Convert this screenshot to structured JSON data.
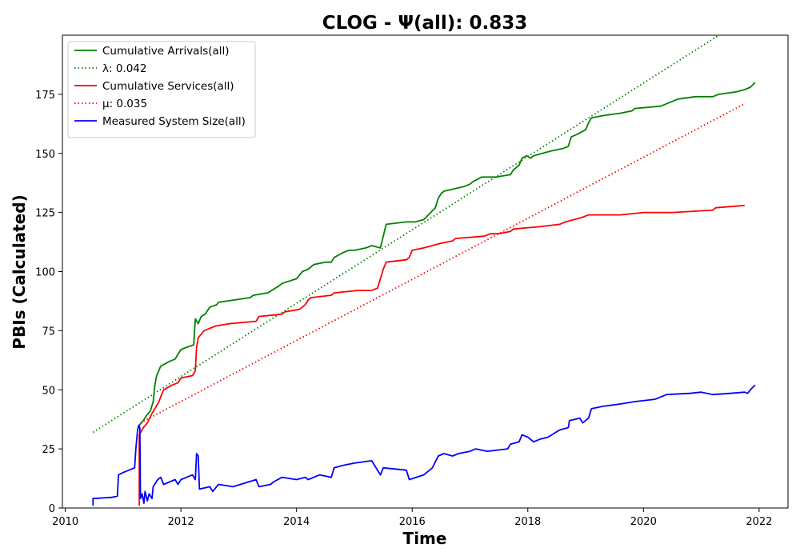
{
  "chart_data": {
    "type": "line",
    "title": "CLOG -  Ψ(all): 0.833",
    "xlabel": "Time",
    "ylabel": "PBIs (Calculated)",
    "xlim": [
      2009.95,
      2022.5
    ],
    "ylim": [
      0,
      200
    ],
    "xticks": [
      2010,
      2012,
      2014,
      2016,
      2018,
      2020,
      2022
    ],
    "yticks": [
      0,
      25,
      50,
      75,
      100,
      125,
      150,
      175
    ],
    "grid": false,
    "legend_position": "top-left",
    "series": [
      {
        "name": "Cumulative Arrivals(all)",
        "style": "solid",
        "color": "#008000",
        "points": [
          [
            2011.28,
            35
          ],
          [
            2011.35,
            37
          ],
          [
            2011.4,
            39
          ],
          [
            2011.47,
            41
          ],
          [
            2011.52,
            45
          ],
          [
            2011.55,
            52
          ],
          [
            2011.58,
            56
          ],
          [
            2011.65,
            60
          ],
          [
            2011.8,
            62
          ],
          [
            2011.9,
            63
          ],
          [
            2011.95,
            65
          ],
          [
            2012.0,
            67
          ],
          [
            2012.1,
            68
          ],
          [
            2012.22,
            69
          ],
          [
            2012.25,
            80
          ],
          [
            2012.3,
            78
          ],
          [
            2012.35,
            81
          ],
          [
            2012.42,
            82
          ],
          [
            2012.5,
            85
          ],
          [
            2012.62,
            86
          ],
          [
            2012.65,
            87
          ],
          [
            2013.2,
            89
          ],
          [
            2013.25,
            90
          ],
          [
            2013.5,
            91
          ],
          [
            2013.7,
            94
          ],
          [
            2013.75,
            95
          ],
          [
            2014.0,
            97
          ],
          [
            2014.1,
            100
          ],
          [
            2014.2,
            101
          ],
          [
            2014.3,
            103
          ],
          [
            2014.5,
            104
          ],
          [
            2014.6,
            104
          ],
          [
            2014.65,
            106
          ],
          [
            2014.8,
            108
          ],
          [
            2014.9,
            109
          ],
          [
            2015.0,
            109
          ],
          [
            2015.2,
            110
          ],
          [
            2015.3,
            111
          ],
          [
            2015.45,
            110
          ],
          [
            2015.5,
            115
          ],
          [
            2015.55,
            120
          ],
          [
            2015.9,
            121
          ],
          [
            2016.05,
            121
          ],
          [
            2016.2,
            122
          ],
          [
            2016.4,
            127
          ],
          [
            2016.45,
            131
          ],
          [
            2016.5,
            133
          ],
          [
            2016.55,
            134
          ],
          [
            2016.9,
            136
          ],
          [
            2017.0,
            137
          ],
          [
            2017.05,
            138
          ],
          [
            2017.2,
            140
          ],
          [
            2017.45,
            140
          ],
          [
            2017.7,
            141
          ],
          [
            2017.75,
            143
          ],
          [
            2017.85,
            145
          ],
          [
            2017.9,
            148
          ],
          [
            2017.98,
            149
          ],
          [
            2018.05,
            148
          ],
          [
            2018.1,
            149
          ],
          [
            2018.4,
            151
          ],
          [
            2018.6,
            152
          ],
          [
            2018.7,
            153
          ],
          [
            2018.75,
            157
          ],
          [
            2018.85,
            158
          ],
          [
            2019.0,
            160
          ],
          [
            2019.05,
            163
          ],
          [
            2019.1,
            165
          ],
          [
            2019.3,
            166
          ],
          [
            2019.6,
            167
          ],
          [
            2019.8,
            168
          ],
          [
            2019.85,
            169
          ],
          [
            2020.3,
            170
          ],
          [
            2020.4,
            171
          ],
          [
            2020.5,
            172
          ],
          [
            2020.6,
            173
          ],
          [
            2020.9,
            174
          ],
          [
            2021.2,
            174
          ],
          [
            2021.3,
            175
          ],
          [
            2021.6,
            176
          ],
          [
            2021.75,
            177
          ],
          [
            2021.85,
            178
          ],
          [
            2021.93,
            180
          ]
        ]
      },
      {
        "name": "λ: 0.042",
        "style": "dotted",
        "color": "#008000",
        "points": [
          [
            2010.48,
            32
          ],
          [
            2021.95,
            210
          ]
        ]
      },
      {
        "name": "Cumulative Services(all)",
        "style": "solid",
        "color": "#ff0000",
        "points": [
          [
            2011.28,
            1
          ],
          [
            2011.28,
            31
          ],
          [
            2011.35,
            34
          ],
          [
            2011.42,
            36
          ],
          [
            2011.5,
            40
          ],
          [
            2011.55,
            42
          ],
          [
            2011.62,
            45
          ],
          [
            2011.65,
            47
          ],
          [
            2011.7,
            50
          ],
          [
            2011.85,
            52
          ],
          [
            2011.95,
            53
          ],
          [
            2012.0,
            55
          ],
          [
            2012.2,
            56
          ],
          [
            2012.25,
            58
          ],
          [
            2012.27,
            68
          ],
          [
            2012.3,
            72
          ],
          [
            2012.4,
            75
          ],
          [
            2012.5,
            76
          ],
          [
            2012.6,
            77
          ],
          [
            2012.85,
            78
          ],
          [
            2013.3,
            79
          ],
          [
            2013.35,
            81
          ],
          [
            2013.75,
            82
          ],
          [
            2013.8,
            83
          ],
          [
            2014.05,
            84
          ],
          [
            2014.15,
            86
          ],
          [
            2014.2,
            88
          ],
          [
            2014.25,
            89
          ],
          [
            2014.6,
            90
          ],
          [
            2014.65,
            91
          ],
          [
            2015.05,
            92
          ],
          [
            2015.3,
            92
          ],
          [
            2015.4,
            93
          ],
          [
            2015.45,
            97
          ],
          [
            2015.5,
            101
          ],
          [
            2015.55,
            104
          ],
          [
            2015.9,
            105
          ],
          [
            2015.95,
            106
          ],
          [
            2016.0,
            109
          ],
          [
            2016.2,
            110
          ],
          [
            2016.35,
            111
          ],
          [
            2016.5,
            112
          ],
          [
            2016.7,
            113
          ],
          [
            2016.75,
            114
          ],
          [
            2017.25,
            115
          ],
          [
            2017.35,
            116
          ],
          [
            2017.5,
            116
          ],
          [
            2017.7,
            117
          ],
          [
            2017.75,
            118
          ],
          [
            2018.2,
            119
          ],
          [
            2018.55,
            120
          ],
          [
            2018.65,
            121
          ],
          [
            2018.8,
            122
          ],
          [
            2018.95,
            123
          ],
          [
            2019.05,
            124
          ],
          [
            2019.6,
            124
          ],
          [
            2020.0,
            125
          ],
          [
            2020.5,
            125
          ],
          [
            2021.2,
            126
          ],
          [
            2021.25,
            127
          ],
          [
            2021.75,
            128
          ]
        ]
      },
      {
        "name": "μ: 0.035",
        "style": "dotted",
        "color": "#ff0000",
        "points": [
          [
            2011.3,
            36
          ],
          [
            2021.75,
            171
          ]
        ]
      },
      {
        "name": "Measured System Size(all)",
        "style": "solid",
        "color": "#0000ff",
        "points": [
          [
            2010.48,
            1
          ],
          [
            2010.48,
            4
          ],
          [
            2010.8,
            4.5
          ],
          [
            2010.9,
            5
          ],
          [
            2010.92,
            14
          ],
          [
            2011.0,
            15
          ],
          [
            2011.1,
            16
          ],
          [
            2011.2,
            17
          ],
          [
            2011.22,
            25
          ],
          [
            2011.25,
            33
          ],
          [
            2011.27,
            35
          ],
          [
            2011.29,
            34
          ],
          [
            2011.3,
            4
          ],
          [
            2011.33,
            6
          ],
          [
            2011.36,
            2
          ],
          [
            2011.38,
            7
          ],
          [
            2011.42,
            3
          ],
          [
            2011.45,
            6
          ],
          [
            2011.5,
            4
          ],
          [
            2011.52,
            9
          ],
          [
            2011.6,
            12
          ],
          [
            2011.65,
            13
          ],
          [
            2011.7,
            10
          ],
          [
            2011.8,
            11
          ],
          [
            2011.9,
            12
          ],
          [
            2011.95,
            10
          ],
          [
            2012.0,
            12
          ],
          [
            2012.1,
            13
          ],
          [
            2012.2,
            14
          ],
          [
            2012.25,
            12
          ],
          [
            2012.27,
            23
          ],
          [
            2012.3,
            22
          ],
          [
            2012.32,
            8
          ],
          [
            2012.5,
            9
          ],
          [
            2012.55,
            7
          ],
          [
            2012.65,
            10
          ],
          [
            2012.9,
            9
          ],
          [
            2013.3,
            12
          ],
          [
            2013.35,
            9
          ],
          [
            2013.55,
            10
          ],
          [
            2013.6,
            11
          ],
          [
            2013.75,
            13
          ],
          [
            2014.0,
            12
          ],
          [
            2014.15,
            13
          ],
          [
            2014.2,
            12
          ],
          [
            2014.4,
            14
          ],
          [
            2014.6,
            13
          ],
          [
            2014.65,
            17
          ],
          [
            2014.8,
            18
          ],
          [
            2015.0,
            19
          ],
          [
            2015.3,
            20
          ],
          [
            2015.45,
            14
          ],
          [
            2015.5,
            17
          ],
          [
            2015.9,
            16
          ],
          [
            2015.95,
            12
          ],
          [
            2016.2,
            14
          ],
          [
            2016.35,
            17
          ],
          [
            2016.45,
            22
          ],
          [
            2016.55,
            23
          ],
          [
            2016.7,
            22
          ],
          [
            2016.8,
            23
          ],
          [
            2017.0,
            24
          ],
          [
            2017.1,
            25
          ],
          [
            2017.3,
            24
          ],
          [
            2017.65,
            25
          ],
          [
            2017.7,
            27
          ],
          [
            2017.85,
            28
          ],
          [
            2017.9,
            31
          ],
          [
            2018.0,
            30
          ],
          [
            2018.1,
            28
          ],
          [
            2018.2,
            29
          ],
          [
            2018.35,
            30
          ],
          [
            2018.55,
            33
          ],
          [
            2018.7,
            34
          ],
          [
            2018.72,
            37
          ],
          [
            2018.9,
            38
          ],
          [
            2018.95,
            36
          ],
          [
            2019.05,
            38
          ],
          [
            2019.1,
            42
          ],
          [
            2019.3,
            43
          ],
          [
            2019.6,
            44
          ],
          [
            2019.85,
            45
          ],
          [
            2020.2,
            46
          ],
          [
            2020.4,
            48
          ],
          [
            2020.8,
            48.5
          ],
          [
            2021.0,
            49
          ],
          [
            2021.2,
            48
          ],
          [
            2021.5,
            48.5
          ],
          [
            2021.75,
            49
          ],
          [
            2021.8,
            48.5
          ],
          [
            2021.85,
            50
          ],
          [
            2021.93,
            52
          ]
        ]
      }
    ]
  }
}
